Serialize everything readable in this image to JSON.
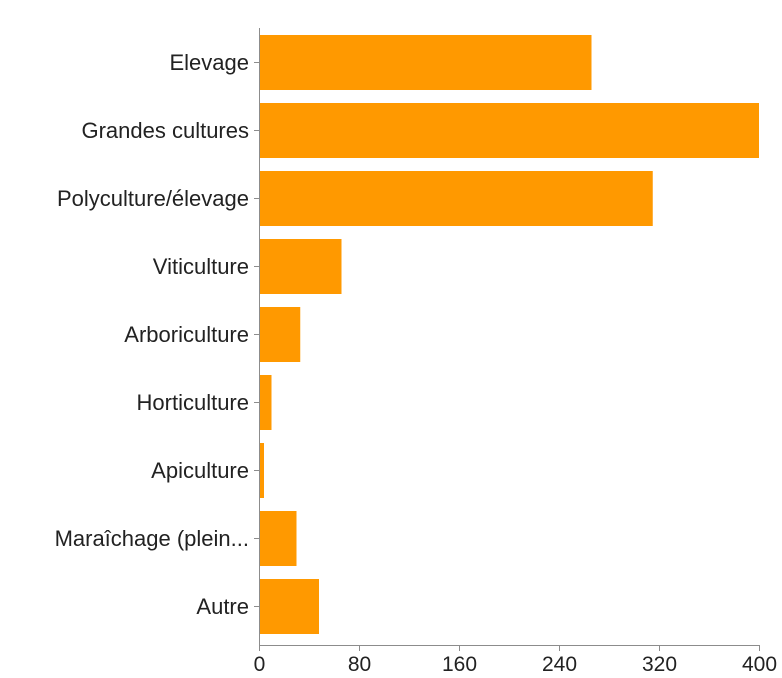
{
  "colors": {
    "bar": "#ff9900",
    "axis": "#8c8c8c",
    "text": "#222222"
  },
  "chart_data": {
    "type": "bar",
    "orientation": "horizontal",
    "categories": [
      "Elevage",
      "Grandes cultures",
      "Polyculture/élevage",
      "Viticulture",
      "Arboriculture",
      "Horticulture",
      "Apiculture",
      "Maraîchage (plein...",
      "Autre"
    ],
    "values": [
      266,
      402,
      315,
      66,
      33,
      10,
      4,
      30,
      48
    ],
    "xlim": [
      0,
      400
    ],
    "xticks": [
      0,
      80,
      160,
      240,
      320,
      400
    ],
    "xtick_labels": [
      "0",
      "80",
      "160",
      "240",
      "320",
      "400"
    ],
    "grid": false,
    "legend": "none"
  }
}
